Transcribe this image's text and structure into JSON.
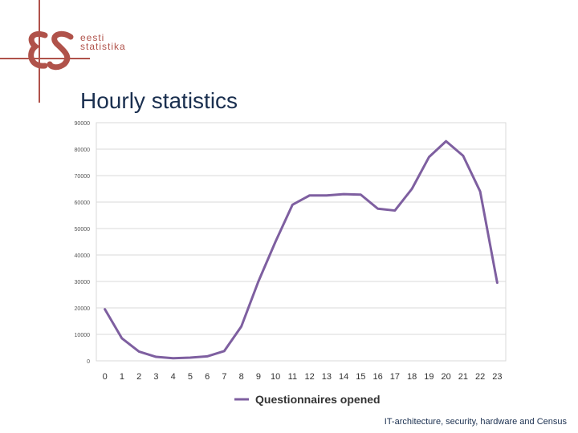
{
  "logo": {
    "line1": "eesti",
    "line2": "statistika",
    "accent_color": "#b0524a"
  },
  "slide": {
    "title": "Hourly statistics"
  },
  "footer": {
    "text": "IT-architecture, security, hardware and Census"
  },
  "chart_data": {
    "type": "line",
    "title": "",
    "xlabel": "",
    "ylabel": "",
    "categories": [
      "0",
      "1",
      "2",
      "3",
      "4",
      "5",
      "6",
      "7",
      "8",
      "9",
      "10",
      "11",
      "12",
      "13",
      "14",
      "15",
      "16",
      "17",
      "18",
      "19",
      "20",
      "21",
      "22",
      "23"
    ],
    "series": [
      {
        "name": "Questionnaires opened",
        "color": "#7e5fa0",
        "values": [
          19500,
          8500,
          3500,
          1500,
          1000,
          1200,
          1700,
          3700,
          13000,
          30000,
          45000,
          59000,
          62500,
          62500,
          63000,
          62800,
          57500,
          56800,
          65000,
          77000,
          83000,
          77500,
          64000,
          29500
        ]
      }
    ],
    "ylim": [
      0,
      90000
    ],
    "yticks": [
      "0",
      "10000",
      "20000",
      "30000",
      "40000",
      "50000",
      "60000",
      "70000",
      "80000",
      "90000"
    ],
    "grid": true,
    "legend": "bottom"
  }
}
